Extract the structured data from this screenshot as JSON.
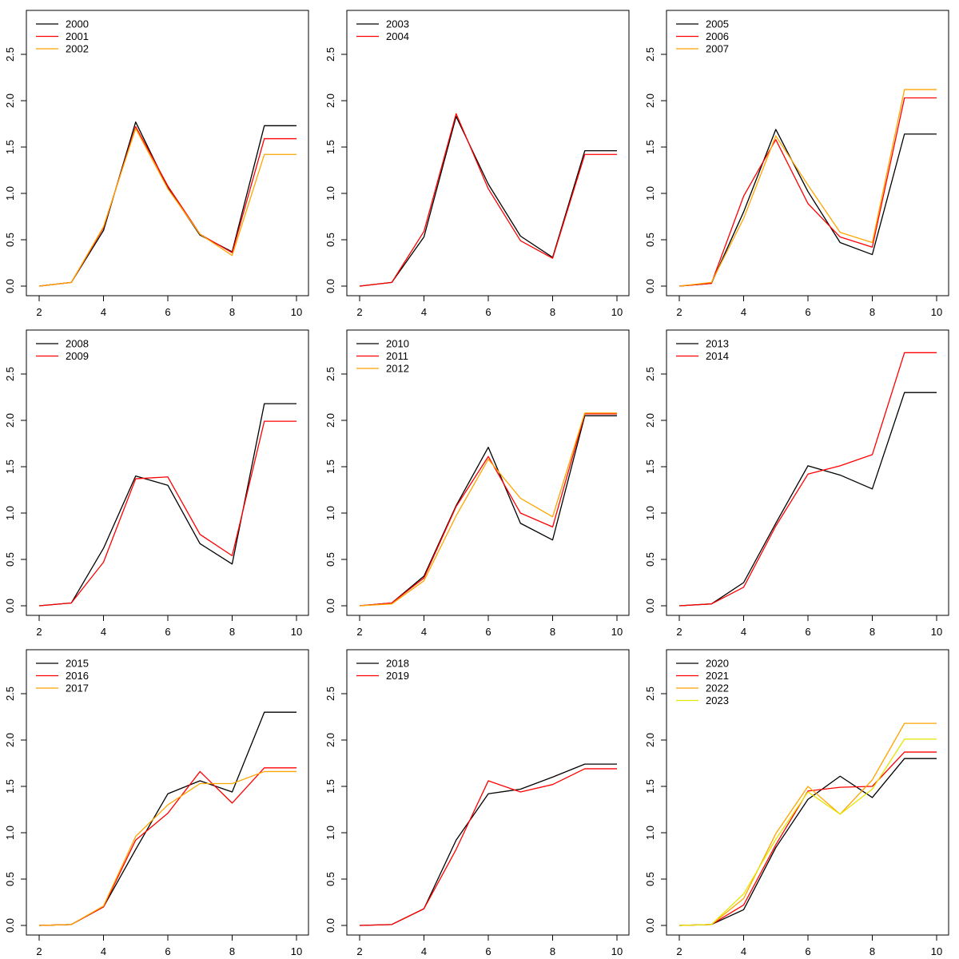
{
  "chart_data": [
    {
      "type": "line",
      "x": [
        2,
        3,
        4,
        5,
        6,
        7,
        8,
        9,
        10
      ],
      "xlim": [
        2,
        10
      ],
      "ylim": [
        0,
        2.75
      ],
      "xticks": [
        "2",
        "4",
        "6",
        "8",
        "10"
      ],
      "yticks": [
        "0.0",
        "0.5",
        "1.0",
        "1.5",
        "2.0",
        "2.5"
      ],
      "legend_position": "top-left",
      "series": [
        {
          "name": "2000",
          "color": "#000000",
          "values": [
            0.0,
            0.04,
            0.6,
            1.77,
            1.06,
            0.55,
            0.37,
            1.73,
            1.73
          ]
        },
        {
          "name": "2001",
          "color": "#ff0000",
          "values": [
            0.0,
            0.04,
            0.63,
            1.72,
            1.08,
            0.56,
            0.36,
            1.59,
            1.59
          ]
        },
        {
          "name": "2002",
          "color": "#ffa500",
          "values": [
            0.0,
            0.04,
            0.64,
            1.7,
            1.05,
            0.56,
            0.33,
            1.42,
            1.42
          ]
        }
      ]
    },
    {
      "type": "line",
      "x": [
        2,
        3,
        4,
        5,
        6,
        7,
        8,
        9,
        10
      ],
      "xlim": [
        2,
        10
      ],
      "ylim": [
        0,
        2.75
      ],
      "xticks": [
        "2",
        "4",
        "6",
        "8",
        "10"
      ],
      "yticks": [
        "0.0",
        "0.5",
        "1.0",
        "1.5",
        "2.0",
        "2.5"
      ],
      "legend_position": "top-left",
      "series": [
        {
          "name": "2003",
          "color": "#000000",
          "values": [
            0.0,
            0.04,
            0.53,
            1.83,
            1.1,
            0.54,
            0.31,
            1.46,
            1.46
          ]
        },
        {
          "name": "2004",
          "color": "#ff0000",
          "values": [
            0.0,
            0.04,
            0.59,
            1.86,
            1.05,
            0.49,
            0.3,
            1.42,
            1.42
          ]
        }
      ]
    },
    {
      "type": "line",
      "x": [
        2,
        3,
        4,
        5,
        6,
        7,
        8,
        9,
        10
      ],
      "xlim": [
        2,
        10
      ],
      "ylim": [
        0,
        2.75
      ],
      "xticks": [
        "2",
        "4",
        "6",
        "8",
        "10"
      ],
      "yticks": [
        "0.0",
        "0.5",
        "1.0",
        "1.5",
        "2.0",
        "2.5"
      ],
      "legend_position": "top-left",
      "series": [
        {
          "name": "2005",
          "color": "#000000",
          "values": [
            0.0,
            0.03,
            0.8,
            1.69,
            1.02,
            0.47,
            0.34,
            1.64,
            1.64
          ]
        },
        {
          "name": "2006",
          "color": "#ff0000",
          "values": [
            0.0,
            0.03,
            0.97,
            1.58,
            0.89,
            0.53,
            0.42,
            2.03,
            2.03
          ]
        },
        {
          "name": "2007",
          "color": "#ffa500",
          "values": [
            0.0,
            0.04,
            0.73,
            1.62,
            1.09,
            0.58,
            0.47,
            2.12,
            2.12
          ]
        }
      ]
    },
    {
      "type": "line",
      "x": [
        2,
        3,
        4,
        5,
        6,
        7,
        8,
        9,
        10
      ],
      "xlim": [
        2,
        10
      ],
      "ylim": [
        0,
        2.75
      ],
      "xticks": [
        "2",
        "4",
        "6",
        "8",
        "10"
      ],
      "yticks": [
        "0.0",
        "0.5",
        "1.0",
        "1.5",
        "2.0",
        "2.5"
      ],
      "legend_position": "top-left",
      "series": [
        {
          "name": "2008",
          "color": "#000000",
          "values": [
            0.0,
            0.03,
            0.62,
            1.4,
            1.3,
            0.67,
            0.45,
            2.18,
            2.18
          ]
        },
        {
          "name": "2009",
          "color": "#ff0000",
          "values": [
            0.0,
            0.03,
            0.47,
            1.37,
            1.39,
            0.77,
            0.54,
            1.99,
            1.99
          ]
        }
      ]
    },
    {
      "type": "line",
      "x": [
        2,
        3,
        4,
        5,
        6,
        7,
        8,
        9,
        10
      ],
      "xlim": [
        2,
        10
      ],
      "ylim": [
        0,
        2.75
      ],
      "xticks": [
        "2",
        "4",
        "6",
        "8",
        "10"
      ],
      "yticks": [
        "0.0",
        "0.5",
        "1.0",
        "1.5",
        "2.0",
        "2.5"
      ],
      "legend_position": "top-left",
      "series": [
        {
          "name": "2010",
          "color": "#000000",
          "values": [
            0.0,
            0.03,
            0.32,
            1.08,
            1.71,
            0.89,
            0.71,
            2.05,
            2.05
          ]
        },
        {
          "name": "2011",
          "color": "#ff0000",
          "values": [
            0.0,
            0.03,
            0.3,
            1.07,
            1.61,
            1.0,
            0.85,
            2.07,
            2.07
          ]
        },
        {
          "name": "2012",
          "color": "#ffa500",
          "values": [
            0.0,
            0.02,
            0.27,
            0.97,
            1.58,
            1.16,
            0.96,
            2.08,
            2.08
          ]
        }
      ]
    },
    {
      "type": "line",
      "x": [
        2,
        3,
        4,
        5,
        6,
        7,
        8,
        9,
        10
      ],
      "xlim": [
        2,
        10
      ],
      "ylim": [
        0,
        2.75
      ],
      "xticks": [
        "2",
        "4",
        "6",
        "8",
        "10"
      ],
      "yticks": [
        "0.0",
        "0.5",
        "1.0",
        "1.5",
        "2.0",
        "2.5"
      ],
      "legend_position": "top-left",
      "series": [
        {
          "name": "2013",
          "color": "#000000",
          "values": [
            0.0,
            0.02,
            0.25,
            0.89,
            1.51,
            1.41,
            1.26,
            2.3,
            2.3
          ]
        },
        {
          "name": "2014",
          "color": "#ff0000",
          "values": [
            0.0,
            0.02,
            0.2,
            0.86,
            1.42,
            1.51,
            1.63,
            2.73,
            2.73
          ]
        }
      ]
    },
    {
      "type": "line",
      "x": [
        2,
        3,
        4,
        5,
        6,
        7,
        8,
        9,
        10
      ],
      "xlim": [
        2,
        10
      ],
      "ylim": [
        0,
        2.75
      ],
      "xticks": [
        "2",
        "4",
        "6",
        "8",
        "10"
      ],
      "yticks": [
        "0.0",
        "0.5",
        "1.0",
        "1.5",
        "2.0",
        "2.5"
      ],
      "legend_position": "top-left",
      "series": [
        {
          "name": "2015",
          "color": "#000000",
          "values": [
            0.0,
            0.01,
            0.2,
            0.82,
            1.42,
            1.56,
            1.44,
            2.3,
            2.3
          ]
        },
        {
          "name": "2016",
          "color": "#ff0000",
          "values": [
            0.0,
            0.01,
            0.2,
            0.92,
            1.21,
            1.66,
            1.32,
            1.7,
            1.7
          ]
        },
        {
          "name": "2017",
          "color": "#ffa500",
          "values": [
            0.0,
            0.01,
            0.21,
            0.96,
            1.3,
            1.53,
            1.53,
            1.66,
            1.66
          ]
        }
      ]
    },
    {
      "type": "line",
      "x": [
        2,
        3,
        4,
        5,
        6,
        7,
        8,
        9,
        10
      ],
      "xlim": [
        2,
        10
      ],
      "ylim": [
        0,
        2.75
      ],
      "xticks": [
        "2",
        "4",
        "6",
        "8",
        "10"
      ],
      "yticks": [
        "0.0",
        "0.5",
        "1.0",
        "1.5",
        "2.0",
        "2.5"
      ],
      "legend_position": "top-left",
      "series": [
        {
          "name": "2018",
          "color": "#000000",
          "values": [
            0.0,
            0.01,
            0.18,
            0.92,
            1.42,
            1.47,
            1.6,
            1.74,
            1.74
          ]
        },
        {
          "name": "2019",
          "color": "#ff0000",
          "values": [
            0.0,
            0.01,
            0.18,
            0.82,
            1.56,
            1.44,
            1.52,
            1.69,
            1.69
          ]
        }
      ]
    },
    {
      "type": "line",
      "x": [
        2,
        3,
        4,
        5,
        6,
        7,
        8,
        9,
        10
      ],
      "xlim": [
        2,
        10
      ],
      "ylim": [
        0,
        2.75
      ],
      "xticks": [
        "2",
        "4",
        "6",
        "8",
        "10"
      ],
      "yticks": [
        "0.0",
        "0.5",
        "1.0",
        "1.5",
        "2.0",
        "2.5"
      ],
      "legend_position": "top-left",
      "series": [
        {
          "name": "2020",
          "color": "#000000",
          "values": [
            0.0,
            0.01,
            0.17,
            0.84,
            1.36,
            1.61,
            1.38,
            1.8,
            1.8
          ]
        },
        {
          "name": "2021",
          "color": "#ff0000",
          "values": [
            0.0,
            0.01,
            0.22,
            0.87,
            1.45,
            1.49,
            1.5,
            1.87,
            1.87
          ]
        },
        {
          "name": "2022",
          "color": "#ffa500",
          "values": [
            0.0,
            0.01,
            0.29,
            0.99,
            1.5,
            1.2,
            1.57,
            2.18,
            2.18
          ]
        },
        {
          "name": "2023",
          "color": "#e6e600",
          "values": [
            0.0,
            0.01,
            0.34,
            0.93,
            1.44,
            1.2,
            1.47,
            2.01,
            2.01
          ]
        }
      ]
    }
  ]
}
